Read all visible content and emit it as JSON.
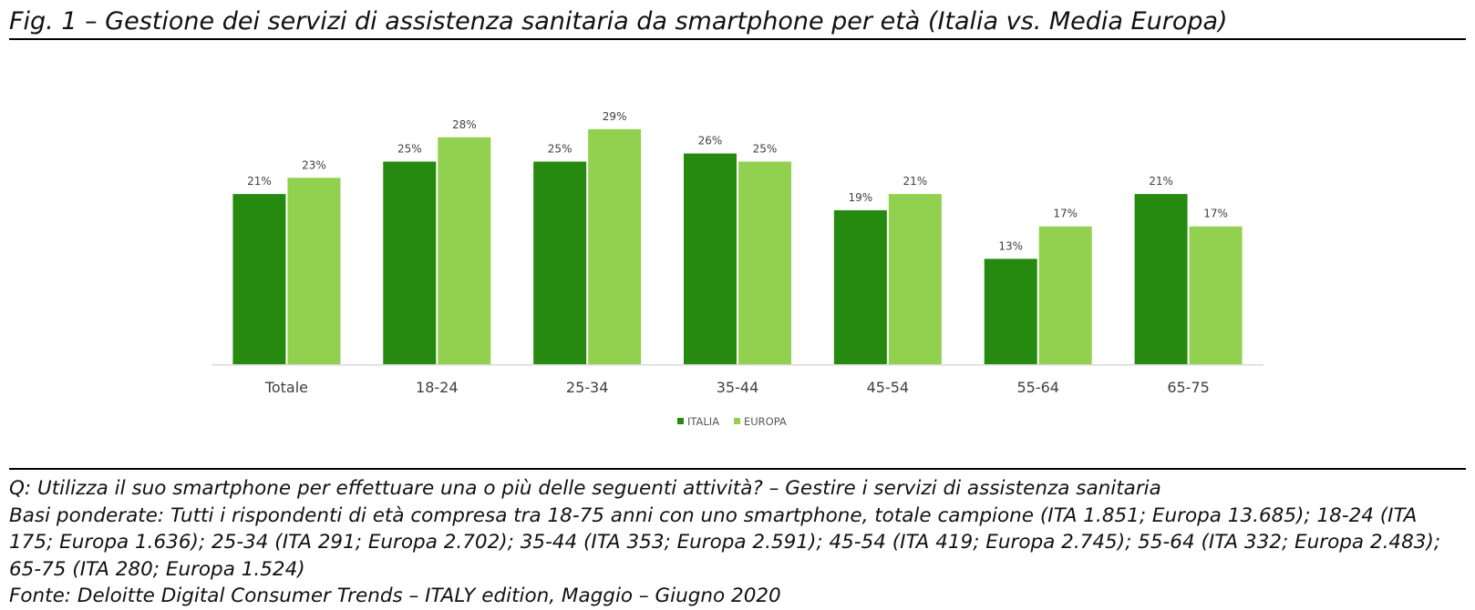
{
  "figure": {
    "title": "Fig. 1 – Gestione dei servizi di assistenza sanitaria da smartphone per età (Italia vs. Media Europa)"
  },
  "notes": {
    "question": "Q: Utilizza il suo smartphone per effettuare una o più delle seguenti attività? – Gestire i servizi di assistenza sanitaria",
    "bases": "Basi ponderate: Tutti i rispondenti di età compresa tra 18-75 anni con uno smartphone, totale campione (ITA 1.851; Europa 13.685); 18-24 (ITA 175; Europa 1.636); 25-34 (ITA 291; Europa 2.702); 35-44 (ITA 353; Europa 2.591); 45-54 (ITA 419; Europa 2.745); 55-64 (ITA 332; Europa 2.483); 65-75 (ITA 280; Europa 1.524)",
    "source": "Fonte: Deloitte Digital Consumer Trends – ITALY edition, Maggio – Giugno 2020"
  },
  "chart_data": {
    "type": "bar",
    "title": "",
    "xlabel": "",
    "ylabel": "",
    "ylim": [
      0,
      35
    ],
    "grid": false,
    "legend_position": "bottom-center",
    "value_suffix": "%",
    "categories": [
      "Totale",
      "18-24",
      "25-34",
      "35-44",
      "45-54",
      "55-64",
      "65-75"
    ],
    "series": [
      {
        "name": "ITALIA",
        "color": "#268a10",
        "values": [
          21,
          25,
          25,
          26,
          19,
          13,
          21
        ]
      },
      {
        "name": "EUROPA",
        "color": "#92d050",
        "values": [
          23,
          28,
          29,
          25,
          21,
          17,
          17
        ]
      }
    ]
  }
}
